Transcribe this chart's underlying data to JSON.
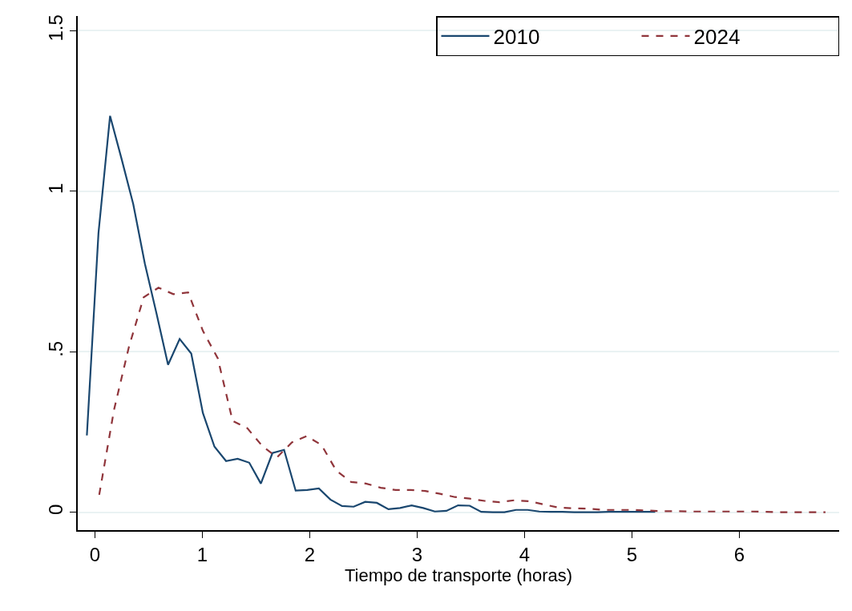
{
  "chart_data": {
    "type": "line",
    "xlabel": "Tiempo de transporte (horas)",
    "xlim": [
      -0.16,
      6.93
    ],
    "xticks": [
      0,
      1,
      2,
      3,
      4,
      5,
      6
    ],
    "ylim": [
      -0.055,
      1.546
    ],
    "yticks": [
      0,
      {
        "value": 0.5,
        "label": ".5"
      },
      1,
      1.5
    ],
    "grid": "y",
    "legend": "top right",
    "marker": "none",
    "series": [
      {
        "name": "2010",
        "color": "#1a476f",
        "line_style": "solid",
        "x": [
          -0.075,
          0.033,
          0.141,
          0.249,
          0.357,
          0.465,
          0.573,
          0.681,
          0.789,
          0.897,
          1.005,
          1.113,
          1.221,
          1.329,
          1.437,
          1.545,
          1.653,
          1.761,
          1.869,
          1.977,
          2.085,
          2.193,
          2.301,
          2.409,
          2.517,
          2.625,
          2.733,
          2.841,
          2.949,
          3.057,
          3.165,
          3.273,
          3.381,
          3.489,
          3.597,
          3.705,
          3.813,
          3.921,
          4.029,
          4.137,
          4.245,
          4.353,
          4.461,
          4.569,
          4.677,
          4.785,
          4.893,
          5.001,
          5.109,
          5.217
        ],
        "values": [
          0.24,
          0.87,
          1.235,
          1.1,
          0.96,
          0.775,
          0.62,
          0.46,
          0.54,
          0.495,
          0.31,
          0.205,
          0.16,
          0.167,
          0.155,
          0.09,
          0.185,
          0.195,
          0.068,
          0.07,
          0.075,
          0.04,
          0.02,
          0.018,
          0.033,
          0.03,
          0.01,
          0.014,
          0.022,
          0.014,
          0.003,
          0.005,
          0.022,
          0.021,
          0.002,
          0.001,
          0.001,
          0.008,
          0.008,
          0.003,
          0.002,
          0.002,
          0.001,
          0.001,
          0.001,
          0.002,
          0.002,
          0.002,
          0.002,
          0.002
        ]
      },
      {
        "name": "2024",
        "color": "#90353b",
        "line_style": "dashed",
        "x": [
          0.04,
          0.178,
          0.316,
          0.454,
          0.592,
          0.73,
          0.868,
          1.006,
          1.144,
          1.282,
          1.42,
          1.558,
          1.696,
          1.834,
          1.972,
          2.11,
          2.248,
          2.386,
          2.524,
          2.662,
          2.8,
          2.938,
          3.076,
          3.214,
          3.352,
          3.49,
          3.628,
          3.766,
          3.904,
          4.042,
          4.18,
          4.318,
          4.456,
          4.594,
          4.732,
          4.87,
          5.008,
          5.146,
          5.284,
          5.422,
          5.56,
          5.698,
          5.836,
          5.974,
          6.112,
          6.25,
          6.388,
          6.526,
          6.664,
          6.802
        ],
        "values": [
          0.055,
          0.32,
          0.515,
          0.67,
          0.7,
          0.68,
          0.685,
          0.565,
          0.48,
          0.285,
          0.262,
          0.207,
          0.172,
          0.218,
          0.238,
          0.21,
          0.13,
          0.095,
          0.09,
          0.077,
          0.07,
          0.07,
          0.067,
          0.058,
          0.048,
          0.043,
          0.036,
          0.032,
          0.038,
          0.035,
          0.025,
          0.015,
          0.013,
          0.012,
          0.008,
          0.008,
          0.008,
          0.006,
          0.004,
          0.004,
          0.003,
          0.003,
          0.003,
          0.003,
          0.003,
          0.002,
          0.001,
          0.001,
          0.001,
          0.001
        ]
      }
    ]
  }
}
